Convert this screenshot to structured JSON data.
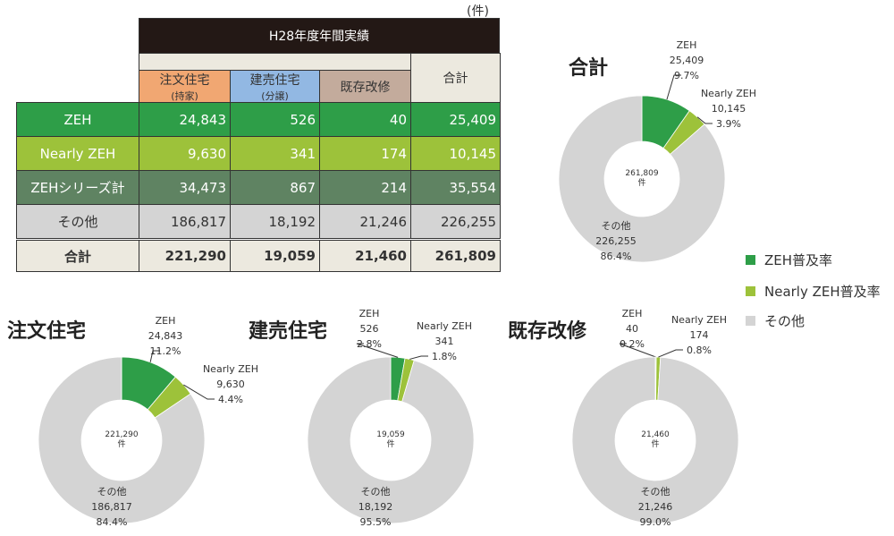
{
  "unit": "(件)",
  "table": {
    "title": "H28年度年間実績",
    "columns": [
      {
        "label": "注文住宅",
        "sub": "(持家)"
      },
      {
        "label": "建売住宅",
        "sub": "(分譲)"
      },
      {
        "label": "既存改修",
        "sub": ""
      },
      {
        "label": "合計",
        "sub": ""
      }
    ],
    "rows": [
      {
        "label": "ZEH",
        "values": [
          "24,843",
          "526",
          "40",
          "25,409"
        ]
      },
      {
        "label": "Nearly ZEH",
        "values": [
          "9,630",
          "341",
          "174",
          "10,145"
        ]
      },
      {
        "label": "ZEHシリーズ計",
        "values": [
          "34,473",
          "867",
          "214",
          "35,554"
        ]
      },
      {
        "label": "その他",
        "values": [
          "186,817",
          "18,192",
          "21,246",
          "226,255"
        ]
      },
      {
        "label": "合計",
        "values": [
          "221,290",
          "19,059",
          "21,460",
          "261,809"
        ]
      }
    ]
  },
  "colors": {
    "zeh": "#2e9e48",
    "nearly": "#9dc23a",
    "series": "#5f8362",
    "other": "#d4d4d4",
    "beige": "#ece9df",
    "orange": "#f1a772",
    "blue": "#92b8e3",
    "taupe": "#c3ab9c",
    "header": "#231815"
  },
  "legend": [
    "ZEH普及率",
    "Nearly ZEH普及率",
    "その他"
  ],
  "chart_data": [
    {
      "type": "pie",
      "title": "合計",
      "center": "261,809",
      "center_unit": "件",
      "categories": [
        "ZEH",
        "Nearly ZEH",
        "その他"
      ],
      "values": [
        25409,
        10145,
        226255
      ],
      "value_labels": [
        "25,409",
        "10,145",
        "226,255"
      ],
      "percent_labels": [
        "9.7%",
        "3.9%",
        "86.4%"
      ]
    },
    {
      "type": "pie",
      "title": "注文住宅",
      "center": "221,290",
      "center_unit": "件",
      "categories": [
        "ZEH",
        "Nearly ZEH",
        "その他"
      ],
      "values": [
        24843,
        9630,
        186817
      ],
      "value_labels": [
        "24,843",
        "9,630",
        "186,817"
      ],
      "percent_labels": [
        "11.2%",
        "4.4%",
        "84.4%"
      ]
    },
    {
      "type": "pie",
      "title": "建売住宅",
      "center": "19,059",
      "center_unit": "件",
      "categories": [
        "ZEH",
        "Nearly ZEH",
        "その他"
      ],
      "values": [
        526,
        341,
        18192
      ],
      "value_labels": [
        "526",
        "341",
        "18,192"
      ],
      "percent_labels": [
        "2.8%",
        "1.8%",
        "95.5%"
      ]
    },
    {
      "type": "pie",
      "title": "既存改修",
      "center": "21,460",
      "center_unit": "件",
      "categories": [
        "ZEH",
        "Nearly ZEH",
        "その他"
      ],
      "values": [
        40,
        174,
        21246
      ],
      "value_labels": [
        "40",
        "174",
        "21,246"
      ],
      "percent_labels": [
        "0.2%",
        "0.8%",
        "99.0%"
      ]
    }
  ]
}
